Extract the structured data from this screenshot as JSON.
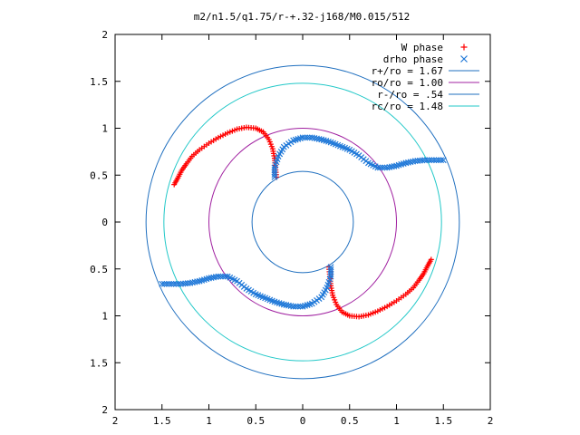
{
  "chart_data": {
    "type": "scatter",
    "title": "m2/n1.5/q1.75/r-+.32-j168/M0.015/512",
    "xlabel": "",
    "ylabel": "",
    "xlim": [
      -2,
      2
    ],
    "ylim": [
      -2,
      2
    ],
    "grid": false,
    "legend_position": "top-right",
    "x_ticks": [
      -2,
      -1.5,
      -1,
      -0.5,
      0,
      0.5,
      1,
      1.5,
      2
    ],
    "x_tick_labels": [
      "2",
      "1.5",
      "1",
      "0.5",
      "0",
      "0.5",
      "1",
      "1.5",
      "2"
    ],
    "y_ticks": [
      -2,
      -1.5,
      -1,
      -0.5,
      0,
      0.5,
      1,
      1.5,
      2
    ],
    "y_tick_labels": [
      "2",
      "1.5",
      "1",
      "0.5",
      "0",
      "0.5",
      "1",
      "1.5",
      "2"
    ],
    "circles": [
      {
        "name": "r+/ro = 1.67",
        "radius": 1.67,
        "color": "#1f6fbf"
      },
      {
        "name": "ro/ro = 1.00",
        "radius": 1.0,
        "color": "#a020a0"
      },
      {
        "name": "r-/ro = .54",
        "radius": 0.54,
        "color": "#1f6fbf"
      },
      {
        "name": "rc/ro = 1.48",
        "radius": 1.48,
        "color": "#22c8c8"
      }
    ],
    "series": [
      {
        "name": "W phase",
        "marker": "plus",
        "color": "#ff0000",
        "points": [
          [
            -1.37,
            0.4
          ],
          [
            -1.33,
            0.47
          ],
          [
            -1.29,
            0.55
          ],
          [
            -1.24,
            0.62
          ],
          [
            -1.18,
            0.7
          ],
          [
            -1.1,
            0.77
          ],
          [
            -1.0,
            0.84
          ],
          [
            -0.9,
            0.9
          ],
          [
            -0.8,
            0.95
          ],
          [
            -0.7,
            0.99
          ],
          [
            -0.6,
            1.01
          ],
          [
            -0.5,
            1.0
          ],
          [
            -0.42,
            0.96
          ],
          [
            -0.36,
            0.88
          ],
          [
            -0.32,
            0.78
          ],
          [
            -0.3,
            0.68
          ],
          [
            -0.29,
            0.58
          ],
          [
            -0.28,
            0.48
          ],
          [
            1.37,
            -0.4
          ],
          [
            1.33,
            -0.47
          ],
          [
            1.29,
            -0.55
          ],
          [
            1.24,
            -0.62
          ],
          [
            1.18,
            -0.7
          ],
          [
            1.1,
            -0.77
          ],
          [
            1.0,
            -0.84
          ],
          [
            0.9,
            -0.9
          ],
          [
            0.8,
            -0.95
          ],
          [
            0.7,
            -0.99
          ],
          [
            0.6,
            -1.01
          ],
          [
            0.5,
            -1.0
          ],
          [
            0.42,
            -0.96
          ],
          [
            0.36,
            -0.88
          ],
          [
            0.32,
            -0.78
          ],
          [
            0.3,
            -0.68
          ],
          [
            0.29,
            -0.58
          ],
          [
            0.28,
            -0.48
          ]
        ]
      },
      {
        "name": "drho phase",
        "marker": "cross",
        "color": "#1f78d8",
        "points": [
          [
            -0.3,
            0.48
          ],
          [
            -0.3,
            0.58
          ],
          [
            -0.26,
            0.7
          ],
          [
            -0.2,
            0.8
          ],
          [
            -0.1,
            0.87
          ],
          [
            0.0,
            0.9
          ],
          [
            0.1,
            0.9
          ],
          [
            0.2,
            0.88
          ],
          [
            0.3,
            0.85
          ],
          [
            0.4,
            0.81
          ],
          [
            0.5,
            0.77
          ],
          [
            0.6,
            0.71
          ],
          [
            0.7,
            0.63
          ],
          [
            0.8,
            0.58
          ],
          [
            0.9,
            0.58
          ],
          [
            1.0,
            0.6
          ],
          [
            1.1,
            0.63
          ],
          [
            1.2,
            0.65
          ],
          [
            1.3,
            0.66
          ],
          [
            1.4,
            0.66
          ],
          [
            1.5,
            0.66
          ],
          [
            0.3,
            -0.48
          ],
          [
            0.3,
            -0.58
          ],
          [
            0.26,
            -0.7
          ],
          [
            0.2,
            -0.8
          ],
          [
            0.1,
            -0.87
          ],
          [
            0.0,
            -0.9
          ],
          [
            -0.1,
            -0.9
          ],
          [
            -0.2,
            -0.88
          ],
          [
            -0.3,
            -0.85
          ],
          [
            -0.4,
            -0.81
          ],
          [
            -0.5,
            -0.77
          ],
          [
            -0.6,
            -0.71
          ],
          [
            -0.7,
            -0.63
          ],
          [
            -0.8,
            -0.58
          ],
          [
            -0.9,
            -0.58
          ],
          [
            -1.0,
            -0.6
          ],
          [
            -1.1,
            -0.63
          ],
          [
            -1.2,
            -0.65
          ],
          [
            -1.3,
            -0.66
          ],
          [
            -1.4,
            -0.66
          ],
          [
            -1.5,
            -0.66
          ]
        ]
      }
    ]
  }
}
